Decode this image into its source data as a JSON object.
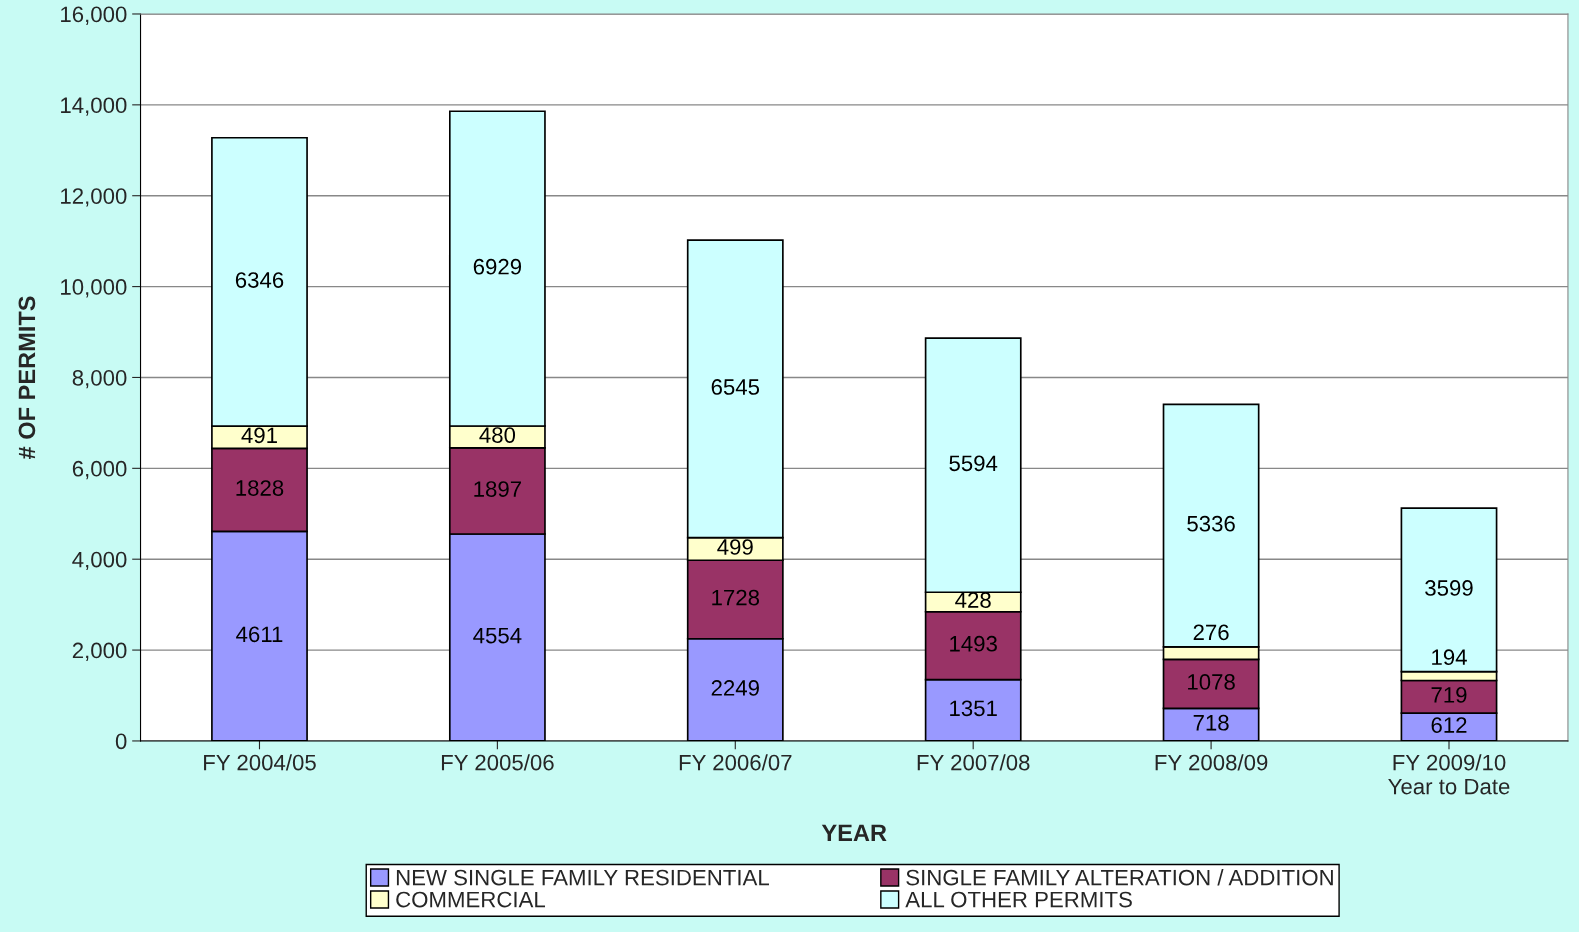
{
  "chart_data": {
    "type": "bar",
    "stacked": true,
    "xlabel": "YEAR",
    "ylabel": "# OF PERMITS",
    "categories": [
      "FY 2004/05",
      "FY 2005/06",
      "FY 2006/07",
      "FY 2007/08",
      "FY 2008/09",
      "FY 2009/10\nYear to Date"
    ],
    "series": [
      {
        "name": "NEW SINGLE FAMILY RESIDENTIAL",
        "color": "#9999ff",
        "values": [
          4611,
          4554,
          2249,
          1351,
          718,
          612
        ]
      },
      {
        "name": "SINGLE FAMILY ALTERATION / ADDITION",
        "color": "#993366",
        "values": [
          1828,
          1897,
          1728,
          1493,
          1078,
          719
        ]
      },
      {
        "name": "COMMERCIAL",
        "color": "#ffffcc",
        "values": [
          491,
          480,
          499,
          428,
          276,
          194
        ]
      },
      {
        "name": "ALL OTHER PERMITS",
        "color": "#ccffff",
        "values": [
          6346,
          6929,
          6545,
          5594,
          5336,
          3599
        ]
      }
    ],
    "ylim": [
      0,
      16000
    ],
    "yticks": [
      {
        "value": 0,
        "label": "0"
      },
      {
        "value": 2000,
        "label": "2,000"
      },
      {
        "value": 4000,
        "label": "4,000"
      },
      {
        "value": 6000,
        "label": "6,000"
      },
      {
        "value": 8000,
        "label": "8,000"
      },
      {
        "value": 10000,
        "label": "10,000"
      },
      {
        "value": 12000,
        "label": "12,000"
      },
      {
        "value": 14000,
        "label": "14,000"
      },
      {
        "value": 16000,
        "label": "16,000"
      }
    ],
    "grid": "y",
    "legend": "bottom",
    "data_labels": true
  }
}
